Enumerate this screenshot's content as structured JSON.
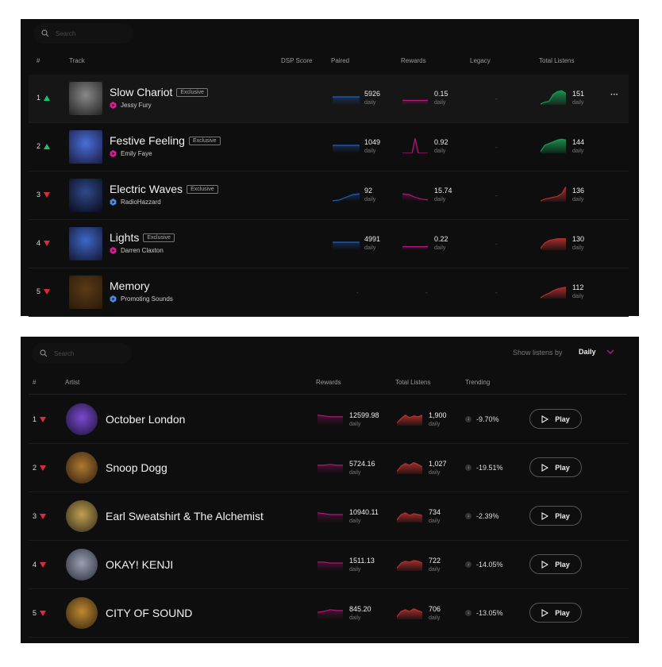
{
  "colors": {
    "up": "#1ec26a",
    "down": "#e0293b",
    "paired": "#1f5fc0",
    "rewards": "#b0187a",
    "listens_up": "#1a9a52",
    "listens_down": "#b3312f",
    "accent": "#c0158a"
  },
  "tracks_panel": {
    "search_placeholder": "Search",
    "headers": {
      "rank": "#",
      "track": "Track",
      "dsp": "DSP Score",
      "paired": "Paired",
      "rewards": "Rewards",
      "legacy": "Legacy",
      "total": "Total Listens"
    },
    "rows": [
      {
        "rank": "1",
        "dir": "up",
        "title": "Slow Chariot",
        "badge": "Exclusive",
        "artist": "Jessy Fury",
        "source": "pink",
        "art": [
          "#888",
          "#222"
        ],
        "paired": "5926",
        "paired_unit": "daily",
        "paired_spark": [
          9,
          9,
          9,
          9,
          9
        ],
        "rewards": "0.15",
        "rewards_unit": "daily",
        "rewards_spark": [
          5,
          5,
          5,
          5,
          5
        ],
        "legacy": "-",
        "total": "151",
        "total_unit": "daily",
        "total_spark": [
          1,
          3,
          4,
          12,
          15,
          16,
          13
        ],
        "total_dir": "up",
        "more": "···"
      },
      {
        "rank": "2",
        "dir": "up",
        "title": "Festive Feeling",
        "badge": "Exclusive",
        "artist": "Emily Faye",
        "source": "pink",
        "art": [
          "#4a6fd8",
          "#1a1a40"
        ],
        "paired": "1049",
        "paired_unit": "daily",
        "paired_spark": [
          9,
          9,
          9,
          9,
          9
        ],
        "rewards": "0.92",
        "rewards_unit": "daily",
        "rewards_spark": [
          0,
          0,
          0,
          0,
          17,
          0,
          0,
          0,
          0
        ],
        "legacy": "-",
        "total": "144",
        "total_unit": "daily",
        "total_spark": [
          2,
          9,
          11,
          13,
          15,
          16,
          15
        ],
        "total_dir": "up"
      },
      {
        "rank": "3",
        "dir": "down",
        "title": "Electric Waves",
        "badge": "Exclusive",
        "artist": "RadioHazzard",
        "source": "blue",
        "art": [
          "#2f4a8a",
          "#0a0a1a"
        ],
        "paired": "92",
        "paired_unit": "daily",
        "paired_spark": [
          1,
          2,
          5,
          8,
          9
        ],
        "rewards": "15.74",
        "rewards_unit": "daily",
        "rewards_spark": [
          9,
          8,
          5,
          3,
          2
        ],
        "legacy": "-",
        "total": "136",
        "total_unit": "daily",
        "total_spark": [
          1,
          3,
          4,
          5,
          6,
          9,
          17
        ],
        "total_dir": "down"
      },
      {
        "rank": "4",
        "dir": "down",
        "title": "Lights",
        "badge": "Exclusive",
        "artist": "Darren Claxton",
        "source": "pink",
        "art": [
          "#3c68c8",
          "#151530"
        ],
        "paired": "4991",
        "paired_unit": "daily",
        "paired_spark": [
          9,
          9,
          9,
          9,
          9
        ],
        "rewards": "0.22",
        "rewards_unit": "daily",
        "rewards_spark": [
          4,
          4,
          4,
          4,
          4
        ],
        "legacy": "-",
        "total": "130",
        "total_unit": "daily",
        "total_spark": [
          2,
          8,
          11,
          12,
          13,
          13,
          13
        ],
        "total_dir": "down"
      },
      {
        "rank": "5",
        "dir": "down",
        "title": "Memory",
        "badge": "",
        "artist": "Promoting Sounds",
        "source": "blue",
        "art": [
          "#5a3a18",
          "#2a1a08"
        ],
        "paired": "-",
        "rewards": "-",
        "legacy": "-",
        "total": "112",
        "total_unit": "daily",
        "total_spark": [
          1,
          4,
          6,
          9,
          11,
          12,
          13
        ],
        "total_dir": "down"
      }
    ]
  },
  "artists_panel": {
    "search_placeholder": "Search",
    "show_by_label": "Show listens by",
    "show_by_value": "Daily",
    "headers": {
      "rank": "#",
      "artist": "Artist",
      "rewards": "Rewards",
      "total": "Total Listens",
      "trending": "Trending"
    },
    "play_label": "Play",
    "rows": [
      {
        "rank": "1",
        "name": "October London",
        "avatar": [
          "#7a4ad0",
          "#1a1030"
        ],
        "rewards": "12599.98",
        "rewards_unit": "daily",
        "rewards_spark": [
          12,
          11,
          10,
          10,
          10
        ],
        "total": "1,900",
        "total_unit": "daily",
        "total_spark": [
          3,
          8,
          12,
          9,
          11,
          10,
          12
        ],
        "trending": "-9.70%"
      },
      {
        "rank": "2",
        "name": "Snoop Dogg",
        "avatar": [
          "#b07a30",
          "#2a1a10"
        ],
        "rewards": "5724.16",
        "rewards_unit": "daily",
        "rewards_spark": [
          10,
          10,
          11,
          10,
          10
        ],
        "total": "1,027",
        "total_unit": "daily",
        "total_spark": [
          3,
          9,
          12,
          10,
          13,
          11,
          8
        ],
        "trending": "-19.51%"
      },
      {
        "rank": "3",
        "name": "Earl Sweatshirt & The Alchemist",
        "avatar": [
          "#c0a050",
          "#30281a"
        ],
        "rewards": "10940.11",
        "rewards_unit": "daily",
        "rewards_spark": [
          11,
          10,
          9,
          9,
          9
        ],
        "total": "734",
        "total_unit": "daily",
        "total_spark": [
          3,
          9,
          11,
          8,
          10,
          9,
          8
        ],
        "trending": "-2.39%"
      },
      {
        "rank": "4",
        "name": "OKAY! KENJI",
        "avatar": [
          "#9aa0b0",
          "#2a2a3a"
        ],
        "rewards": "1511.13",
        "rewards_unit": "daily",
        "rewards_spark": [
          10,
          10,
          9,
          9,
          9
        ],
        "total": "722",
        "total_unit": "daily",
        "total_spark": [
          3,
          9,
          11,
          10,
          12,
          11,
          9
        ],
        "trending": "-14.05%"
      },
      {
        "rank": "5",
        "name": "CITY OF SOUND",
        "avatar": [
          "#c08a30",
          "#302010"
        ],
        "rewards": "845.20",
        "rewards_unit": "daily",
        "rewards_spark": [
          8,
          9,
          11,
          10,
          10
        ],
        "total": "706",
        "total_unit": "daily",
        "total_spark": [
          3,
          9,
          11,
          9,
          12,
          10,
          8
        ],
        "trending": "-13.05%"
      }
    ]
  }
}
